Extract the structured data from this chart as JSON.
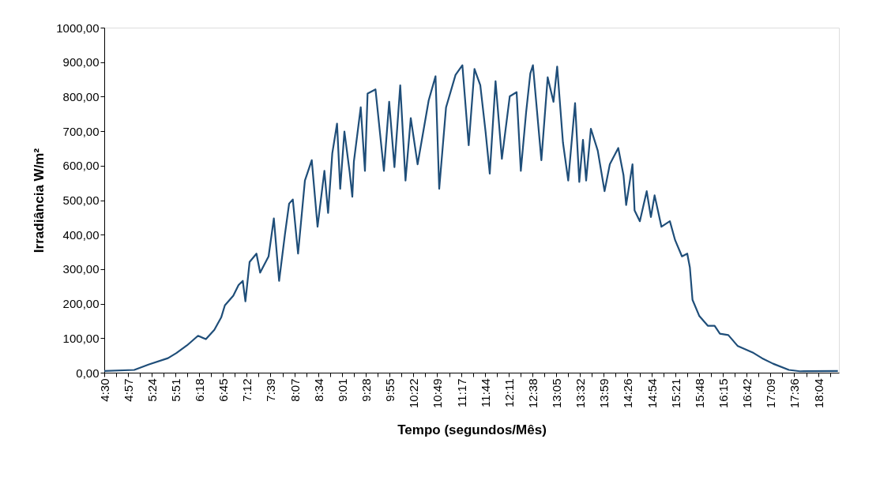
{
  "chart_data": {
    "type": "line",
    "xlabel": "Tempo (segundos/Mês)",
    "ylabel": "Irradiância W/m²",
    "xlim": [
      4.5,
      18.45
    ],
    "ylim": [
      0,
      1000
    ],
    "grid": false,
    "legend": false,
    "marker": "none",
    "line_style": "solid",
    "yticks": [
      {
        "value": 0,
        "label": "0,00"
      },
      {
        "value": 100,
        "label": "100,00"
      },
      {
        "value": 200,
        "label": "200,00"
      },
      {
        "value": 300,
        "label": "300,00"
      },
      {
        "value": 400,
        "label": "400,00"
      },
      {
        "value": 500,
        "label": "500,00"
      },
      {
        "value": 600,
        "label": "600,00"
      },
      {
        "value": 700,
        "label": "700,00"
      },
      {
        "value": 800,
        "label": "800,00"
      },
      {
        "value": 900,
        "label": "900,00"
      },
      {
        "value": 1000,
        "label": "1000,00"
      }
    ],
    "xticks": [
      {
        "value": 4.5,
        "label": "4:30"
      },
      {
        "value": 4.725,
        "label": null
      },
      {
        "value": 4.95,
        "label": "4:57"
      },
      {
        "value": 5.175,
        "label": null
      },
      {
        "value": 5.4,
        "label": "5:24"
      },
      {
        "value": 5.625,
        "label": null
      },
      {
        "value": 5.85,
        "label": "5:51"
      },
      {
        "value": 6.075,
        "label": null
      },
      {
        "value": 6.3,
        "label": "6:18"
      },
      {
        "value": 6.525,
        "label": null
      },
      {
        "value": 6.75,
        "label": "6:45"
      },
      {
        "value": 6.975,
        "label": null
      },
      {
        "value": 7.2,
        "label": "7:12"
      },
      {
        "value": 7.425,
        "label": null
      },
      {
        "value": 7.65,
        "label": "7:39"
      },
      {
        "value": 7.883,
        "label": null
      },
      {
        "value": 8.117,
        "label": "8:07"
      },
      {
        "value": 8.342,
        "label": null
      },
      {
        "value": 8.567,
        "label": "8:34"
      },
      {
        "value": 8.792,
        "label": null
      },
      {
        "value": 9.017,
        "label": "9:01"
      },
      {
        "value": 9.242,
        "label": null
      },
      {
        "value": 9.467,
        "label": "9:28"
      },
      {
        "value": 9.692,
        "label": null
      },
      {
        "value": 9.917,
        "label": "9:55"
      },
      {
        "value": 10.142,
        "label": null
      },
      {
        "value": 10.367,
        "label": "10:22"
      },
      {
        "value": 10.592,
        "label": null
      },
      {
        "value": 10.817,
        "label": "10:49"
      },
      {
        "value": 11.05,
        "label": null
      },
      {
        "value": 11.283,
        "label": "11:17"
      },
      {
        "value": 11.508,
        "label": null
      },
      {
        "value": 11.733,
        "label": "11:44"
      },
      {
        "value": 11.958,
        "label": null
      },
      {
        "value": 12.183,
        "label": "12:11"
      },
      {
        "value": 12.408,
        "label": null
      },
      {
        "value": 12.633,
        "label": "12:38"
      },
      {
        "value": 12.858,
        "label": null
      },
      {
        "value": 13.083,
        "label": "13:05"
      },
      {
        "value": 13.308,
        "label": null
      },
      {
        "value": 13.533,
        "label": "13:32"
      },
      {
        "value": 13.758,
        "label": null
      },
      {
        "value": 13.983,
        "label": "13:59"
      },
      {
        "value": 14.208,
        "label": null
      },
      {
        "value": 14.433,
        "label": "14:26"
      },
      {
        "value": 14.667,
        "label": null
      },
      {
        "value": 14.9,
        "label": "14:54"
      },
      {
        "value": 15.125,
        "label": null
      },
      {
        "value": 15.35,
        "label": "15:21"
      },
      {
        "value": 15.575,
        "label": null
      },
      {
        "value": 15.8,
        "label": "15:48"
      },
      {
        "value": 16.025,
        "label": null
      },
      {
        "value": 16.25,
        "label": "16:15"
      },
      {
        "value": 16.475,
        "label": null
      },
      {
        "value": 16.7,
        "label": "16:42"
      },
      {
        "value": 16.925,
        "label": null
      },
      {
        "value": 17.15,
        "label": "17:09"
      },
      {
        "value": 17.375,
        "label": null
      },
      {
        "value": 17.6,
        "label": "17:36"
      },
      {
        "value": 17.833,
        "label": null
      },
      {
        "value": 18.067,
        "label": "18:04"
      },
      {
        "value": 18.292,
        "label": null
      }
    ],
    "series": [
      {
        "color": "#1f4e79",
        "x": [
          4.5,
          5.07,
          5.35,
          5.71,
          5.87,
          6.07,
          6.28,
          6.43,
          6.59,
          6.72,
          6.79,
          6.95,
          7.05,
          7.13,
          7.18,
          7.26,
          7.39,
          7.46,
          7.62,
          7.72,
          7.82,
          7.93,
          8.01,
          8.08,
          8.18,
          8.31,
          8.44,
          8.55,
          8.68,
          8.75,
          8.83,
          8.92,
          8.98,
          9.06,
          9.16,
          9.21,
          9.24,
          9.37,
          9.45,
          9.5,
          9.65,
          9.81,
          9.91,
          10.01,
          10.12,
          10.22,
          10.32,
          10.45,
          10.66,
          10.79,
          10.86,
          10.99,
          11.17,
          11.3,
          11.42,
          11.53,
          11.64,
          11.74,
          11.82,
          11.93,
          12.05,
          12.2,
          12.33,
          12.41,
          12.51,
          12.59,
          12.64,
          12.8,
          12.92,
          13.03,
          13.1,
          13.21,
          13.31,
          13.44,
          13.52,
          13.59,
          13.65,
          13.74,
          13.87,
          14.0,
          14.1,
          14.26,
          14.36,
          14.41,
          14.53,
          14.57,
          14.67,
          14.8,
          14.88,
          14.95,
          15.08,
          15.24,
          15.34,
          15.47,
          15.57,
          15.62,
          15.67,
          15.8,
          15.96,
          16.09,
          16.19,
          16.35,
          16.53,
          16.83,
          16.99,
          17.2,
          17.5,
          17.71,
          18.43
        ],
        "values": [
          5,
          8,
          24,
          42,
          57,
          79,
          107,
          97,
          124,
          160,
          195,
          223,
          254,
          266,
          207,
          321,
          345,
          290,
          337,
          447,
          266,
          400,
          490,
          502,
          345,
          557,
          616,
          423,
          585,
          463,
          636,
          722,
          533,
          699,
          581,
          510,
          612,
          769,
          585,
          809,
          821,
          585,
          785,
          596,
          833,
          557,
          738,
          604,
          789,
          859,
          533,
          769,
          863,
          891,
          659,
          880,
          833,
          699,
          577,
          845,
          620,
          801,
          813,
          585,
          754,
          867,
          891,
          616,
          856,
          785,
          887,
          667,
          557,
          781,
          553,
          675,
          557,
          707,
          644,
          526,
          604,
          651,
          572,
          486,
          604,
          470,
          439,
          526,
          451,
          514,
          423,
          439,
          384,
          337,
          345,
          305,
          211,
          164,
          136,
          136,
          113,
          109,
          77,
          57,
          42,
          26,
          8,
          4,
          5
        ]
      }
    ]
  }
}
